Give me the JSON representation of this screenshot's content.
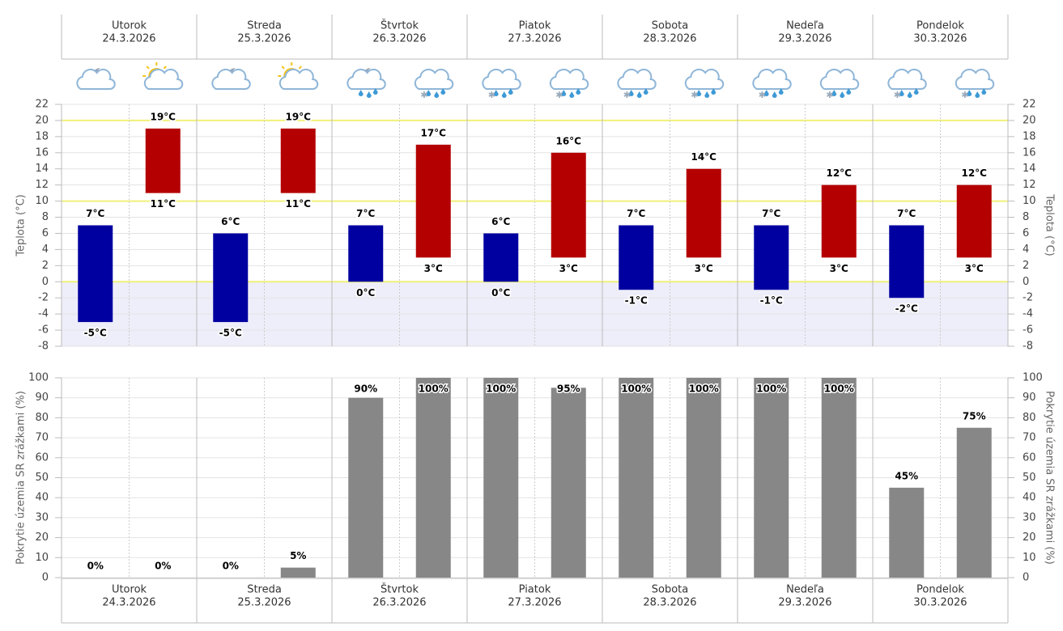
{
  "days": [
    {
      "name": "Utorok",
      "date": "24.3.2026"
    },
    {
      "name": "Streda",
      "date": "25.3.2026"
    },
    {
      "name": "Štvrtok",
      "date": "26.3.2026"
    },
    {
      "name": "Piatok",
      "date": "27.3.2026"
    },
    {
      "name": "Sobota",
      "date": "28.3.2026"
    },
    {
      "name": "Nedeľa",
      "date": "29.3.2026"
    },
    {
      "name": "Pondelok",
      "date": "30.3.2026"
    }
  ],
  "chart_data": [
    {
      "type": "range-bar",
      "y_label": "Teplota (°C)",
      "ylim": [
        -8,
        22
      ],
      "yticks": [
        -8,
        -6,
        -4,
        -2,
        0,
        2,
        4,
        6,
        8,
        10,
        12,
        14,
        16,
        18,
        20,
        22
      ],
      "highlight_lines": [
        0,
        10,
        20
      ],
      "highlight_color": "#f0f07a",
      "grid": true,
      "series": [
        {
          "color": "#0000a0",
          "slot": 0,
          "low": [
            -5,
            -5,
            0,
            0,
            -1,
            -1,
            -2
          ],
          "high": [
            7,
            6,
            7,
            6,
            7,
            7,
            7
          ],
          "low_labels": [
            "-5°C",
            "-5°C",
            "0°C",
            "0°C",
            "-1°C",
            "-1°C",
            "-2°C"
          ],
          "high_labels": [
            "7°C",
            "6°C",
            "7°C",
            "6°C",
            "7°C",
            "7°C",
            "7°C"
          ]
        },
        {
          "color": "#b40000",
          "slot": 1,
          "low": [
            11,
            11,
            3,
            3,
            3,
            3,
            3
          ],
          "high": [
            19,
            19,
            17,
            16,
            14,
            12,
            12
          ],
          "low_labels": [
            "11°C",
            "11°C",
            "3°C",
            "3°C",
            "3°C",
            "3°C",
            "3°C"
          ],
          "high_labels": [
            "19°C",
            "19°C",
            "17°C",
            "16°C",
            "14°C",
            "12°C",
            "12°C"
          ]
        }
      ]
    },
    {
      "type": "bar",
      "y_label": "Pokrytie územia SR zrážkami (%)",
      "ylim": [
        0,
        100
      ],
      "yticks": [
        0,
        10,
        20,
        30,
        40,
        50,
        60,
        70,
        80,
        90,
        100
      ],
      "grid": true,
      "color": "#878787",
      "values": [
        0,
        0,
        0,
        5,
        90,
        100,
        100,
        95,
        100,
        100,
        100,
        100,
        45,
        75
      ],
      "value_labels": [
        "0%",
        "0%",
        "0%",
        "5%",
        "90%",
        "100%",
        "100%",
        "95%",
        "100%",
        "100%",
        "100%",
        "100%",
        "45%",
        "75%"
      ]
    }
  ]
}
